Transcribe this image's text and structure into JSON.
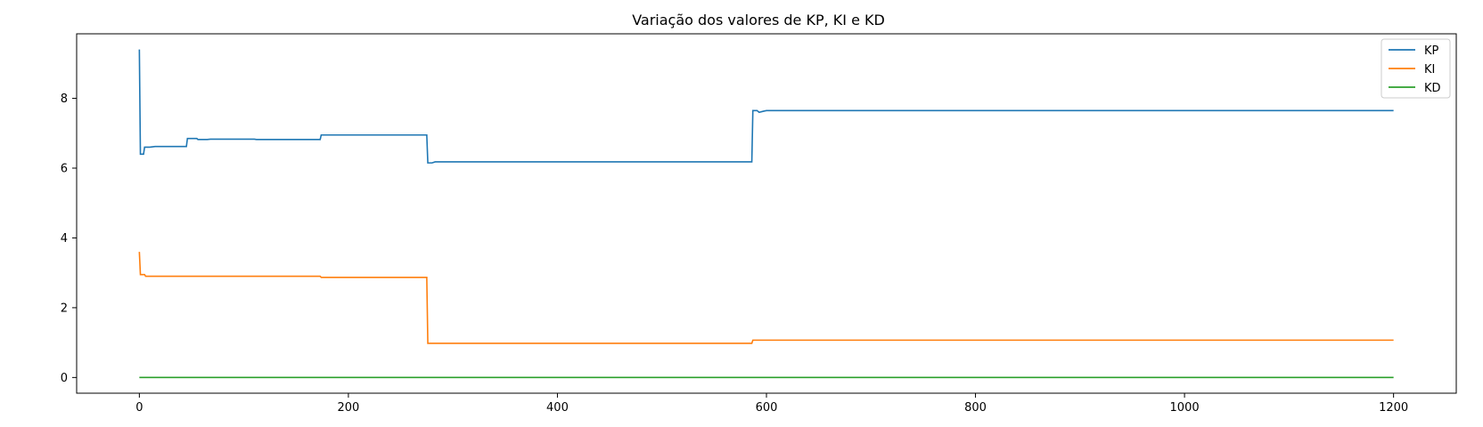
{
  "chart_data": {
    "type": "line",
    "title": "Variação dos valores de KP, KI e KD",
    "xlabel": "",
    "ylabel": "",
    "xlim": [
      -60,
      1260
    ],
    "ylim": [
      -0.45,
      9.85
    ],
    "xticks": [
      0,
      200,
      400,
      600,
      800,
      1000,
      1200
    ],
    "xtick_labels": [
      "0",
      "200",
      "400",
      "600",
      "800",
      "1000",
      "1200"
    ],
    "yticks": [
      0,
      2,
      4,
      6,
      8
    ],
    "ytick_labels": [
      "0",
      "2",
      "4",
      "6",
      "8"
    ],
    "grid": false,
    "legend_position": "top-right",
    "series": [
      {
        "name": "KP",
        "color": "#1f77b4",
        "points": [
          [
            0,
            9.4
          ],
          [
            1,
            6.4
          ],
          [
            4,
            6.4
          ],
          [
            5,
            6.6
          ],
          [
            10,
            6.6
          ],
          [
            15,
            6.62
          ],
          [
            45,
            6.62
          ],
          [
            46,
            6.85
          ],
          [
            55,
            6.85
          ],
          [
            56,
            6.82
          ],
          [
            65,
            6.82
          ],
          [
            68,
            6.83
          ],
          [
            110,
            6.83
          ],
          [
            112,
            6.82
          ],
          [
            173,
            6.82
          ],
          [
            174,
            6.95
          ],
          [
            275,
            6.95
          ],
          [
            276,
            6.15
          ],
          [
            280,
            6.15
          ],
          [
            283,
            6.18
          ],
          [
            586,
            6.18
          ],
          [
            587,
            7.65
          ],
          [
            591,
            7.65
          ],
          [
            593,
            7.6
          ],
          [
            597,
            7.63
          ],
          [
            600,
            7.65
          ],
          [
            1200,
            7.65
          ]
        ]
      },
      {
        "name": "KI",
        "color": "#ff7f0e",
        "points": [
          [
            0,
            3.6
          ],
          [
            1,
            2.95
          ],
          [
            5,
            2.95
          ],
          [
            6,
            2.9
          ],
          [
            173,
            2.9
          ],
          [
            174,
            2.87
          ],
          [
            275,
            2.87
          ],
          [
            276,
            0.98
          ],
          [
            586,
            0.98
          ],
          [
            587,
            1.07
          ],
          [
            1200,
            1.07
          ]
        ]
      },
      {
        "name": "KD",
        "color": "#2ca02c",
        "points": [
          [
            0,
            0
          ],
          [
            1200,
            0
          ]
        ]
      }
    ]
  }
}
